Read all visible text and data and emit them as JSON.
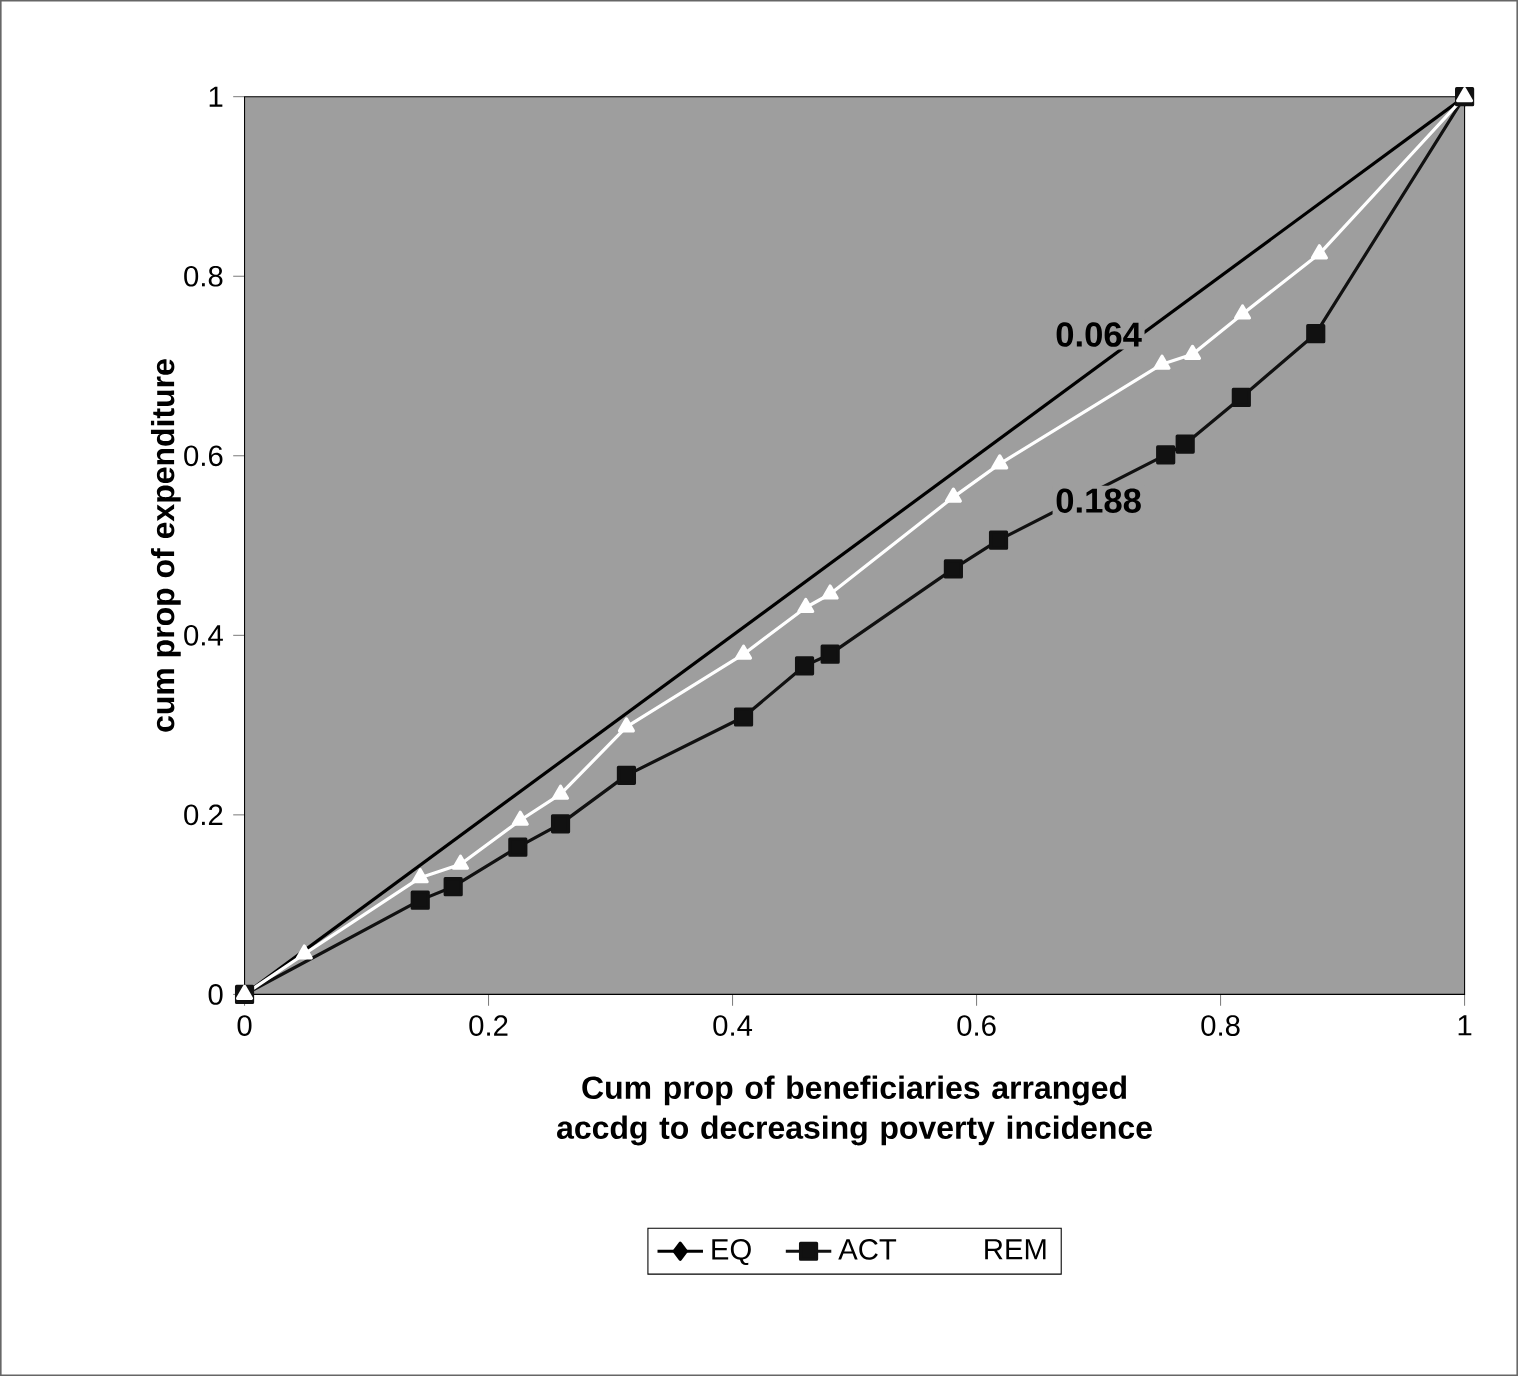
{
  "chart_data": {
    "type": "line",
    "xlabel": "Cum prop of beneficiaries arranged accdg to decreasing poverty incidence",
    "ylabel": "cum prop of expenditure",
    "xlim": [
      0,
      1
    ],
    "ylim": [
      0,
      1
    ],
    "xticks": [
      0,
      0.2,
      0.4,
      0.6,
      0.8,
      1
    ],
    "yticks": [
      0,
      0.2,
      0.4,
      0.6,
      0.8,
      1
    ],
    "grid": false,
    "legend": "bottom",
    "series": [
      {
        "name": "EQ",
        "color": "#000000",
        "marker": "diamond",
        "x": [
          0,
          1
        ],
        "values": [
          0,
          1
        ]
      },
      {
        "name": "ACT",
        "color": "#111111",
        "marker": "square",
        "x": [
          0,
          0.144,
          0.171,
          0.224,
          0.259,
          0.313,
          0.409,
          0.459,
          0.48,
          0.581,
          0.618,
          0.755,
          0.771,
          0.817,
          0.878,
          1
        ],
        "values": [
          0,
          0.105,
          0.12,
          0.164,
          0.19,
          0.244,
          0.309,
          0.366,
          0.379,
          0.474,
          0.506,
          0.601,
          0.613,
          0.665,
          0.736,
          1
        ]
      },
      {
        "name": "REM",
        "color": "#ffffff",
        "marker": "triangle",
        "x": [
          0,
          0.049,
          0.144,
          0.177,
          0.226,
          0.259,
          0.313,
          0.409,
          0.46,
          0.48,
          0.581,
          0.619,
          0.752,
          0.777,
          0.818,
          0.881,
          1
        ],
        "values": [
          0,
          0.045,
          0.13,
          0.145,
          0.194,
          0.223,
          0.298,
          0.379,
          0.431,
          0.446,
          0.554,
          0.591,
          0.702,
          0.713,
          0.758,
          0.825,
          1
        ]
      }
    ],
    "annotations": [
      "0.064",
      "0.188"
    ]
  }
}
